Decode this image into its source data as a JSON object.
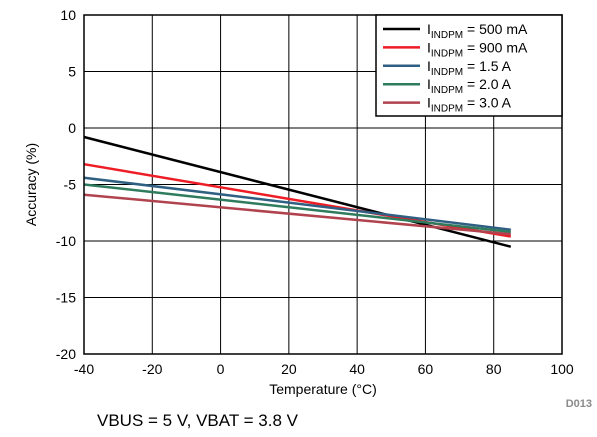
{
  "chart_data": {
    "type": "line",
    "xlabel": "Temperature (°C)",
    "ylabel": "Accuracy (%)",
    "xlim": [
      -40,
      100
    ],
    "ylim": [
      -20,
      10
    ],
    "xticks": [
      -40,
      -20,
      0,
      20,
      40,
      60,
      80,
      100
    ],
    "yticks": [
      10,
      5,
      0,
      -5,
      -10,
      -15,
      -20
    ],
    "grid": true,
    "legend_position": "top-right",
    "series": [
      {
        "name": "I_INDPM = 500 mA",
        "label_main": "I",
        "label_sub": "INDPM",
        "label_rest": " = 500 mA",
        "color": "#000000",
        "x": [
          -40,
          85
        ],
        "y": [
          -0.8,
          -10.5
        ]
      },
      {
        "name": "I_INDPM = 900 mA",
        "label_main": "I",
        "label_sub": "INDPM",
        "label_rest": " = 900 mA",
        "color": "#ee1c25",
        "x": [
          -40,
          85
        ],
        "y": [
          -3.2,
          -9.6
        ]
      },
      {
        "name": "I_INDPM = 1.5 A",
        "label_main": "I",
        "label_sub": "INDPM",
        "label_rest": " = 1.5 A",
        "color": "#2f5f82",
        "x": [
          -40,
          85
        ],
        "y": [
          -4.4,
          -9.0
        ]
      },
      {
        "name": "I_INDPM = 2.0 A",
        "label_main": "I",
        "label_sub": "INDPM",
        "label_rest": " = 2.0 A",
        "color": "#2e7b5d",
        "x": [
          -40,
          85
        ],
        "y": [
          -5.0,
          -9.2
        ]
      },
      {
        "name": "I_INDPM = 3.0 A",
        "label_main": "I",
        "label_sub": "INDPM",
        "label_rest": " = 3.0 A",
        "color": "#b0434e",
        "x": [
          -40,
          85
        ],
        "y": [
          -5.9,
          -9.4
        ]
      }
    ]
  },
  "figure_id": "D013",
  "caption": "VBUS = 5 V, VBAT = 3.8 V"
}
